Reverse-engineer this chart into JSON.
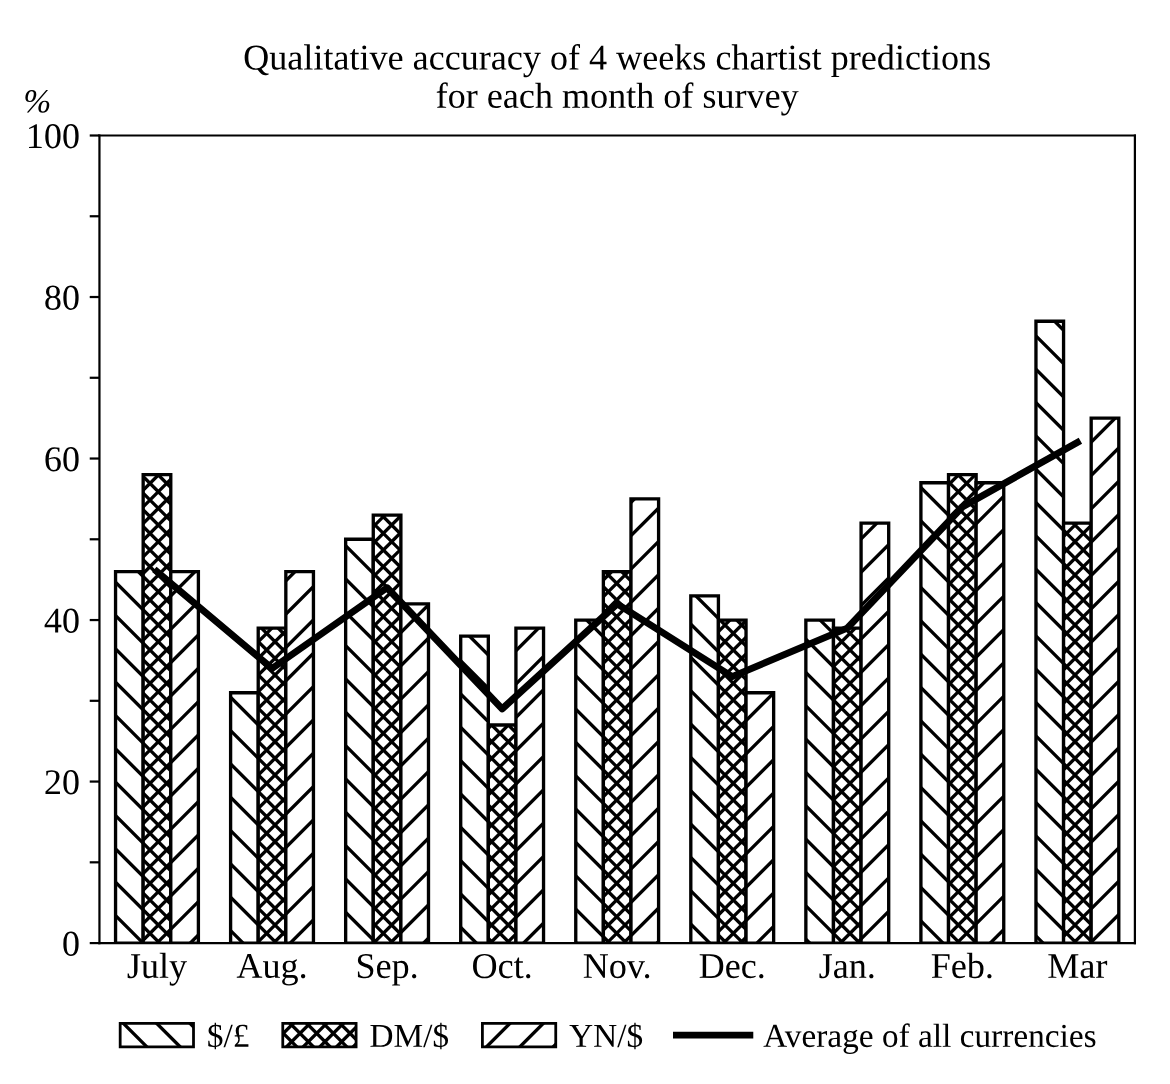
{
  "chart_data": {
    "type": "bar",
    "title": "Qualitative accuracy of 4 weeks chartist predictions\nfor each month of survey",
    "ylabel": "%",
    "categories": [
      "July",
      "Aug.",
      "Sep.",
      "Oct.",
      "Nov.",
      "Dec.",
      "Jan.",
      "Feb.",
      "Mar"
    ],
    "series": [
      {
        "name": "$/£",
        "color": "#000000",
        "values": [
          46,
          31,
          50,
          38,
          40,
          43,
          40,
          57,
          77
        ]
      },
      {
        "name": "DM/$",
        "color": "#000000",
        "values": [
          58,
          39,
          53,
          27,
          46,
          40,
          39,
          58,
          52
        ]
      },
      {
        "name": "YN/$",
        "color": "#000000",
        "values": [
          46,
          46,
          42,
          39,
          55,
          31,
          52,
          57,
          65
        ]
      },
      {
        "name": "Average of all currencies",
        "type": "line",
        "color": "#000000",
        "values": [
          46,
          34,
          44,
          29,
          42,
          33,
          39,
          54,
          62
        ]
      }
    ],
    "ylim": [
      0,
      100
    ],
    "yticks": [
      0,
      {
        "value": 10,
        "label": null
      },
      20,
      {
        "value": 30,
        "label": null
      },
      40,
      {
        "value": 50,
        "label": null
      },
      60,
      {
        "value": 70,
        "label": null
      },
      80,
      {
        "value": 90,
        "label": null
      },
      100
    ],
    "grid": false,
    "legend": "bottom"
  }
}
